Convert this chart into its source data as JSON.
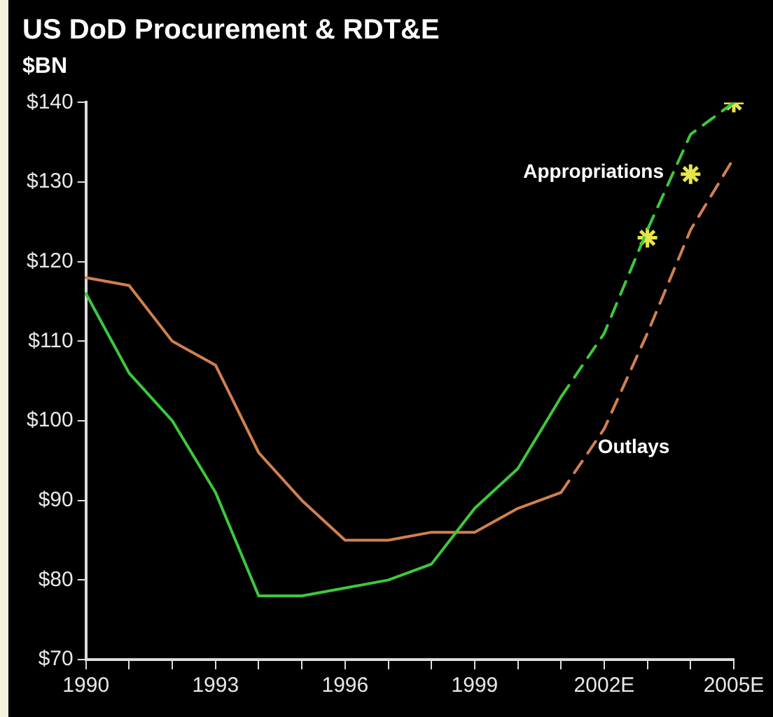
{
  "chart_data": {
    "type": "line",
    "title": "US DoD Procurement & RDT&E",
    "ylabel": "$BN",
    "categories": [
      "1990",
      null,
      null,
      "1993",
      null,
      null,
      "1996",
      null,
      null,
      "1999",
      null,
      null,
      "2002E",
      null,
      null,
      "2005E"
    ],
    "series": [
      {
        "name": "Appropriations",
        "color": "#3cc83c",
        "line_style": "dashed",
        "values": [
          null,
          null,
          null,
          null,
          null,
          null,
          null,
          null,
          null,
          null,
          null,
          103,
          111,
          124,
          136,
          140
        ]
      },
      {
        "name": "Outlays",
        "color": "#d08050",
        "line_style": "dashed",
        "values": [
          null,
          null,
          null,
          null,
          null,
          null,
          null,
          null,
          null,
          null,
          null,
          91,
          99,
          111,
          124,
          133
        ]
      },
      {
        "color": "#3cc83c",
        "line_style": "solid",
        "values": [
          116,
          106,
          100,
          91,
          78,
          78,
          79,
          80,
          82,
          89,
          94,
          103,
          null,
          null,
          null,
          null
        ]
      },
      {
        "color": "#d08050",
        "line_style": "solid",
        "values": [
          118,
          117,
          110,
          107,
          96,
          90,
          85,
          85,
          86,
          86,
          89,
          91,
          null,
          null,
          null,
          null
        ]
      },
      {
        "type": "scatter",
        "color": "#e6e64a",
        "marker": "cross",
        "values": [
          null,
          null,
          null,
          null,
          null,
          null,
          null,
          null,
          null,
          null,
          null,
          null,
          null,
          123,
          131,
          140
        ]
      }
    ],
    "ylim": [
      70,
      140
    ],
    "yticks": [
      {
        "value": 70,
        "label": "$70"
      },
      {
        "value": 80,
        "label": "$80"
      },
      {
        "value": 90,
        "label": "$90"
      },
      {
        "value": 100,
        "label": "$100"
      },
      {
        "value": 110,
        "label": "$110"
      },
      {
        "value": 120,
        "label": "$120"
      },
      {
        "value": 130,
        "label": "$130"
      },
      {
        "value": 140,
        "label": "$140"
      }
    ],
    "grid": false,
    "legend": false
  }
}
